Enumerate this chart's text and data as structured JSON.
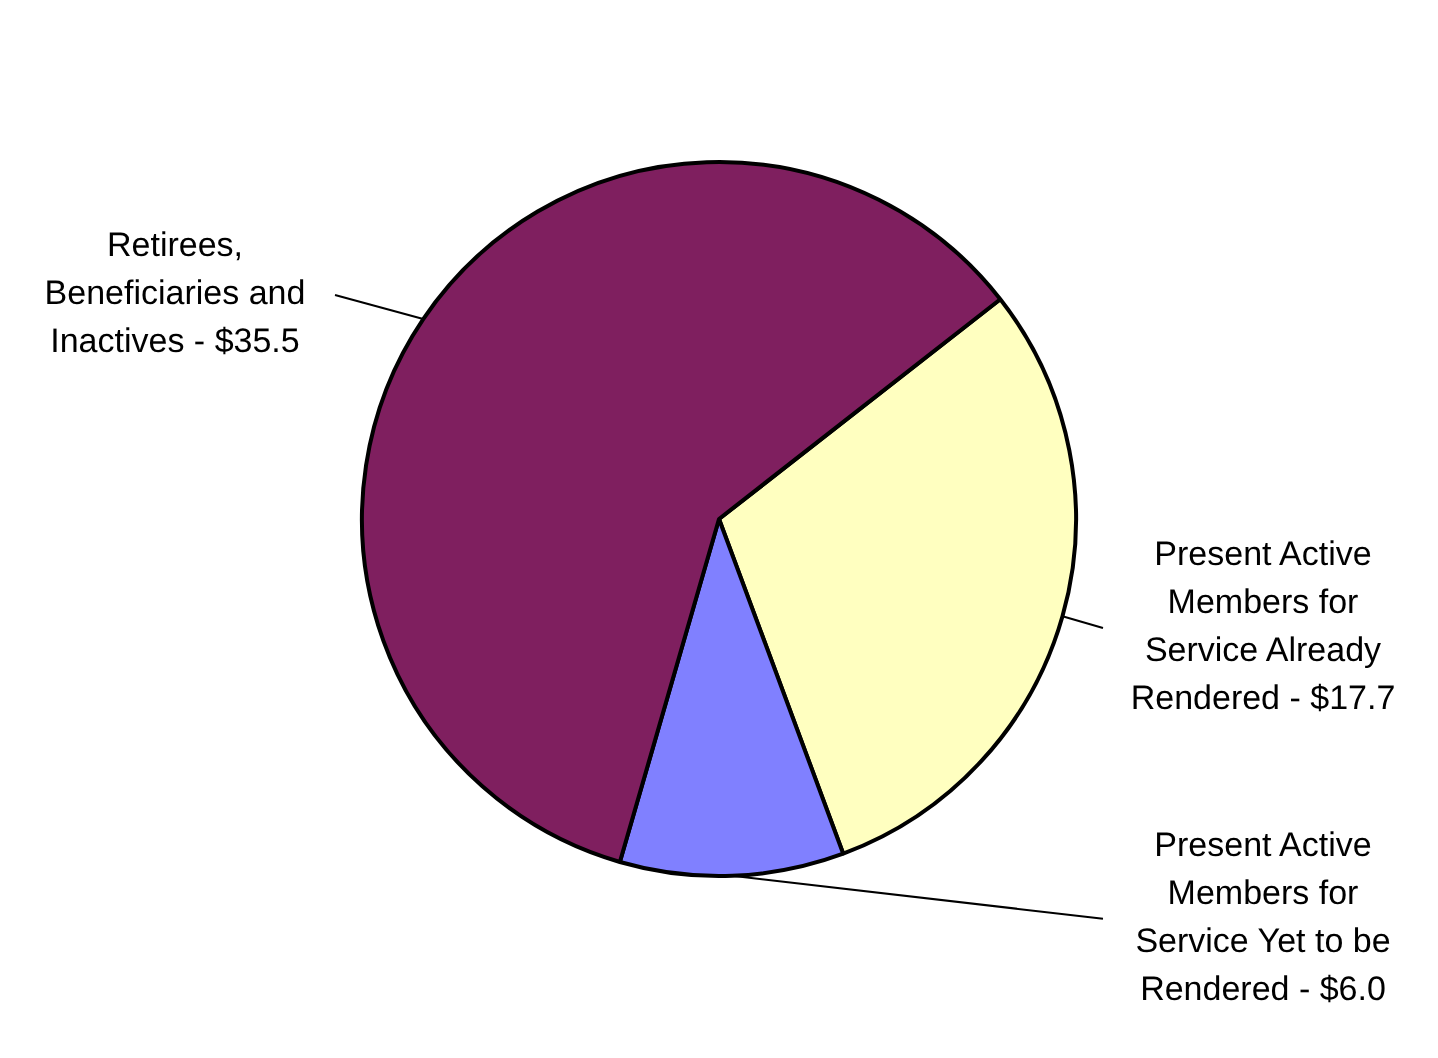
{
  "chart_data": {
    "type": "pie",
    "categories": [
      "Present Active Members for Service Already Rendered",
      "Present Active Members for Service Yet to be Rendered",
      "Retirees, Beneficiaries and Inactives"
    ],
    "values": [
      17.7,
      6.0,
      35.5
    ],
    "value_labels": [
      "$17.7",
      "$6.0",
      "$35.5"
    ],
    "colors": [
      "#ffffc0",
      "#8080ff",
      "#7f1f5f"
    ],
    "legend": false
  }
}
